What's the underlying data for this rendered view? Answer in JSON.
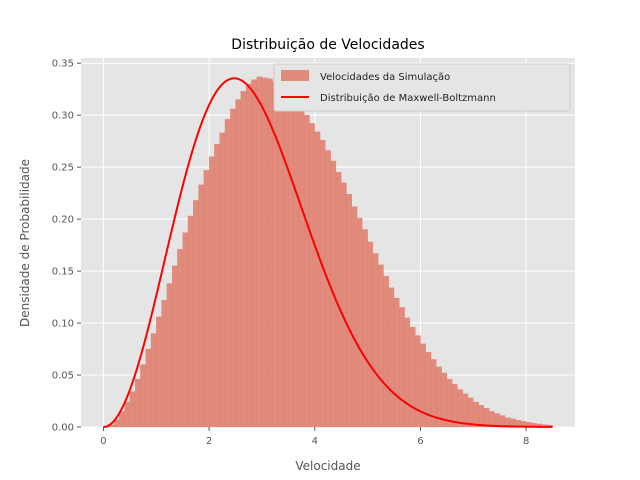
{
  "chart_data": {
    "type": "bar",
    "title": "Distribuição de Velocidades",
    "xlabel": "Velocidade",
    "ylabel": "Densidade de Probabilidade",
    "xlim": [
      -0.425,
      8.925
    ],
    "ylim": [
      0,
      0.355
    ],
    "xticks": [
      0,
      2,
      4,
      6,
      8
    ],
    "yticks": [
      0.0,
      0.05,
      0.1,
      0.15,
      0.2,
      0.25,
      0.3,
      0.35
    ],
    "xtick_labels": [
      "0",
      "2",
      "4",
      "6",
      "8"
    ],
    "ytick_labels": [
      "0.00",
      "0.05",
      "0.10",
      "0.15",
      "0.20",
      "0.25",
      "0.30",
      "0.35"
    ],
    "grid": true,
    "legend_position": "top-right",
    "histogram": {
      "name": "Velocidades da Simulação",
      "color": "#e07b6b",
      "bin_start": 0.0,
      "bin_width": 0.1,
      "values": [
        0.0005,
        0.002,
        0.007,
        0.015,
        0.024,
        0.034,
        0.046,
        0.06,
        0.075,
        0.09,
        0.106,
        0.122,
        0.138,
        0.155,
        0.171,
        0.187,
        0.203,
        0.218,
        0.233,
        0.247,
        0.26,
        0.272,
        0.283,
        0.296,
        0.306,
        0.315,
        0.323,
        0.33,
        0.334,
        0.337,
        0.336,
        0.335,
        0.332,
        0.33,
        0.325,
        0.32,
        0.314,
        0.308,
        0.3,
        0.292,
        0.284,
        0.276,
        0.266,
        0.256,
        0.245,
        0.235,
        0.224,
        0.212,
        0.201,
        0.19,
        0.178,
        0.167,
        0.156,
        0.145,
        0.134,
        0.124,
        0.115,
        0.105,
        0.096,
        0.088,
        0.08,
        0.072,
        0.065,
        0.058,
        0.052,
        0.046,
        0.041,
        0.036,
        0.032,
        0.028,
        0.024,
        0.021,
        0.018,
        0.015,
        0.013,
        0.011,
        0.009,
        0.008,
        0.0065,
        0.0055,
        0.0045,
        0.0036,
        0.0029,
        0.0023,
        0.0018
      ]
    },
    "series": [
      {
        "name": "Distribuição de Maxwell-Boltzmann",
        "color": "#ff0000",
        "type": "line",
        "scale_a": 1.75,
        "x_range": [
          0,
          8.5
        ]
      }
    ]
  }
}
